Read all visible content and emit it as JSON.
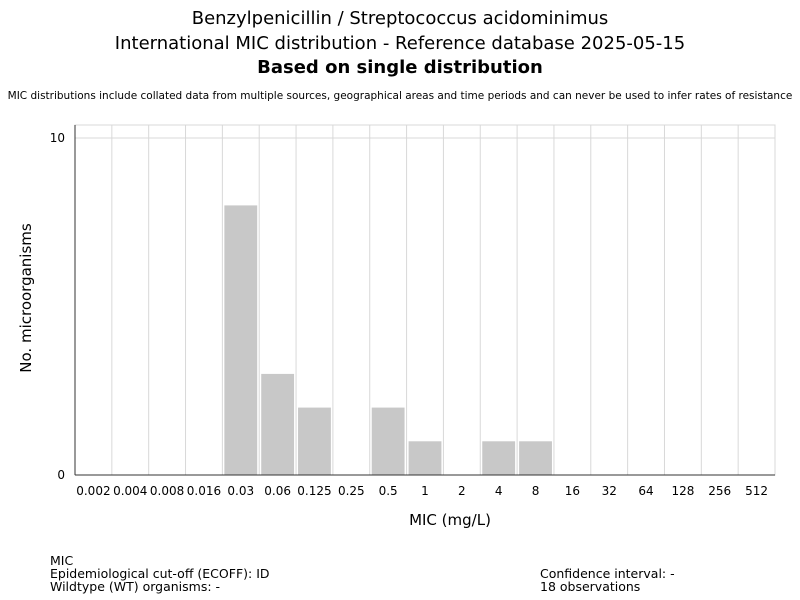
{
  "header": {
    "title_line1": "Benzylpenicillin / Streptococcus acidominimus",
    "title_line2": "International MIC distribution - Reference database 2025-05-15",
    "title_line3": "Based on single distribution",
    "subtitle": "MIC distributions include collated data from multiple sources, geographical areas and time periods and can never be used to infer rates of resistance"
  },
  "footer": {
    "mic_label": "MIC",
    "ecoff": "Epidemiological cut-off (ECOFF): ID",
    "wildtype": "Wildtype (WT) organisms:  -",
    "confidence": "Confidence interval: -",
    "observations": "18 observations"
  },
  "chart_data": {
    "type": "bar",
    "title": "Benzylpenicillin / Streptococcus acidominimus",
    "xlabel": "MIC (mg/L)",
    "ylabel": "No. microorganisms",
    "categories": [
      "0.002",
      "0.004",
      "0.008",
      "0.016",
      "0.03",
      "0.06",
      "0.125",
      "0.25",
      "0.5",
      "1",
      "2",
      "4",
      "8",
      "16",
      "32",
      "64",
      "128",
      "256",
      "512"
    ],
    "values": [
      0,
      0,
      0,
      0,
      8,
      3,
      2,
      0,
      2,
      1,
      0,
      1,
      1,
      0,
      0,
      0,
      0,
      0,
      0
    ],
    "ylim": [
      0,
      10
    ],
    "yticks": [
      0,
      10
    ],
    "grid": true,
    "bar_color": "#c8c8c8",
    "grid_color": "#d8d8d8"
  }
}
